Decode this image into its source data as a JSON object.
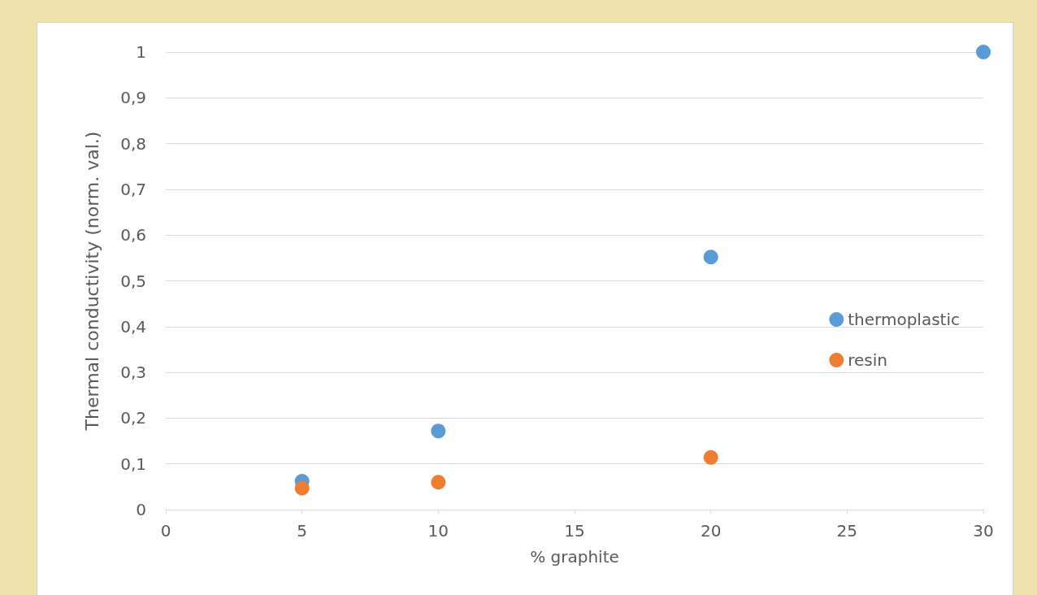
{
  "chart_data": {
    "type": "scatter",
    "xlabel": "% graphite",
    "ylabel": "Thermal conductivity (norm. val.)",
    "series": [
      {
        "name": "thermoplastic",
        "color": "#5b9bd5",
        "x": [
          5,
          10,
          20,
          30
        ],
        "values": [
          0.062,
          0.172,
          0.552,
          1
        ]
      },
      {
        "name": "resin",
        "color": "#ed7d31",
        "x": [
          5,
          10,
          20
        ],
        "values": [
          0.047,
          0.06,
          0.114
        ]
      }
    ],
    "xlim": [
      0,
      30
    ],
    "xticks": [
      0,
      5,
      10,
      15,
      20,
      25,
      30
    ],
    "ylim": [
      0,
      1
    ],
    "yticks": [
      0,
      {
        "value": 0.1,
        "label": "0,1"
      },
      {
        "value": 0.2,
        "label": "0,2"
      },
      {
        "value": 0.3,
        "label": "0,3"
      },
      {
        "value": 0.4,
        "label": "0,4"
      },
      {
        "value": 0.5,
        "label": "0,5"
      },
      {
        "value": 0.6,
        "label": "0,6"
      },
      {
        "value": 0.7,
        "label": "0,7"
      },
      {
        "value": 0.8,
        "label": "0,8"
      },
      {
        "value": 0.9,
        "label": "0,9"
      },
      1
    ],
    "grid": "y",
    "legend": "right",
    "marker": "circle"
  }
}
